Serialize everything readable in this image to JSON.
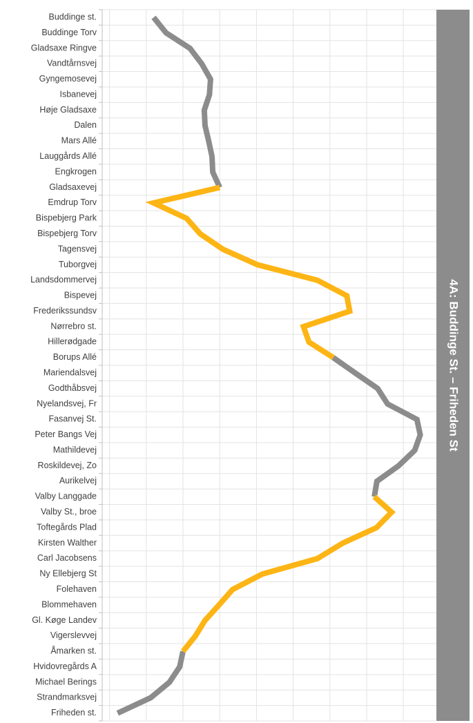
{
  "chart_data": {
    "type": "line",
    "orientation": "horizontal",
    "title": "4A: Buddinge St. – Friheden St",
    "categories": [
      "Buddinge st.",
      "Buddinge Torv",
      "Gladsaxe Ringve",
      "Vandtårnsvej",
      "Gyngemosevej",
      "Isbanevej",
      "Høje Gladsaxe",
      "Dalen",
      "Mars Allé",
      "Lauggårds Allé",
      "Engkrogen",
      "Gladsaxevej",
      "Emdrup Torv",
      "Bispebjerg Park",
      "Bispebjerg Torv",
      "Tagensvej",
      "Tuborgvej",
      "Landsdommervej",
      "Bispevej",
      "Frederikssundsv",
      "Nørrebro st.",
      "Hillerødgade",
      "Borups Allé",
      "Mariendalsvej",
      "Godthåbsvej",
      "Nyelandsvej, Fr",
      "Fasanvej St.",
      "Peter Bangs Vej",
      "Mathildevej",
      "Roskildevej, Zo",
      "Aurikelvej",
      "Valby Langgade",
      "Valby St., broe",
      "Toftegårds Plad",
      "Kirsten Walther",
      "Carl Jacobsens ",
      "Ny Ellebjerg St",
      "Folehaven",
      "Blommehaven",
      "Gl. Køge Landev",
      "Vigerslevvej",
      "Åmarken st.",
      "Hvidovregårds A",
      "Michael Berings",
      "Strandmarksvej",
      "Friheden st."
    ],
    "series": [
      {
        "color": "#8c8c8c",
        "values": [
          12,
          15.4,
          21.9,
          25.1,
          27.5,
          27.2,
          25.8,
          26,
          27,
          27.9,
          28.1,
          30,
          null,
          null,
          null,
          null,
          null,
          null,
          null,
          null,
          null,
          null,
          60.9,
          66.9,
          73,
          75.7,
          83.7,
          84.6,
          83.1,
          78.7,
          72.8,
          72.1,
          null,
          null,
          null,
          null,
          null,
          null,
          null,
          null,
          null,
          20,
          19.1,
          16.3,
          11.2,
          2.2
        ]
      },
      {
        "color": "#fdb515",
        "values": [
          null,
          null,
          null,
          null,
          null,
          null,
          null,
          null,
          null,
          null,
          null,
          30,
          12,
          21,
          24.7,
          30.9,
          40.3,
          56.6,
          64.6,
          65.4,
          52.8,
          54.3,
          60.9,
          null,
          null,
          null,
          null,
          null,
          null,
          null,
          null,
          72.1,
          76.8,
          72.7,
          63.5,
          56.6,
          41.6,
          33.5,
          29.8,
          26,
          23.4,
          20,
          null,
          null,
          null,
          null
        ]
      }
    ],
    "xlim": [
      -2,
      89
    ],
    "xticks": [
      0,
      10,
      20,
      30,
      40,
      50,
      60,
      70,
      80
    ],
    "grid": true
  }
}
